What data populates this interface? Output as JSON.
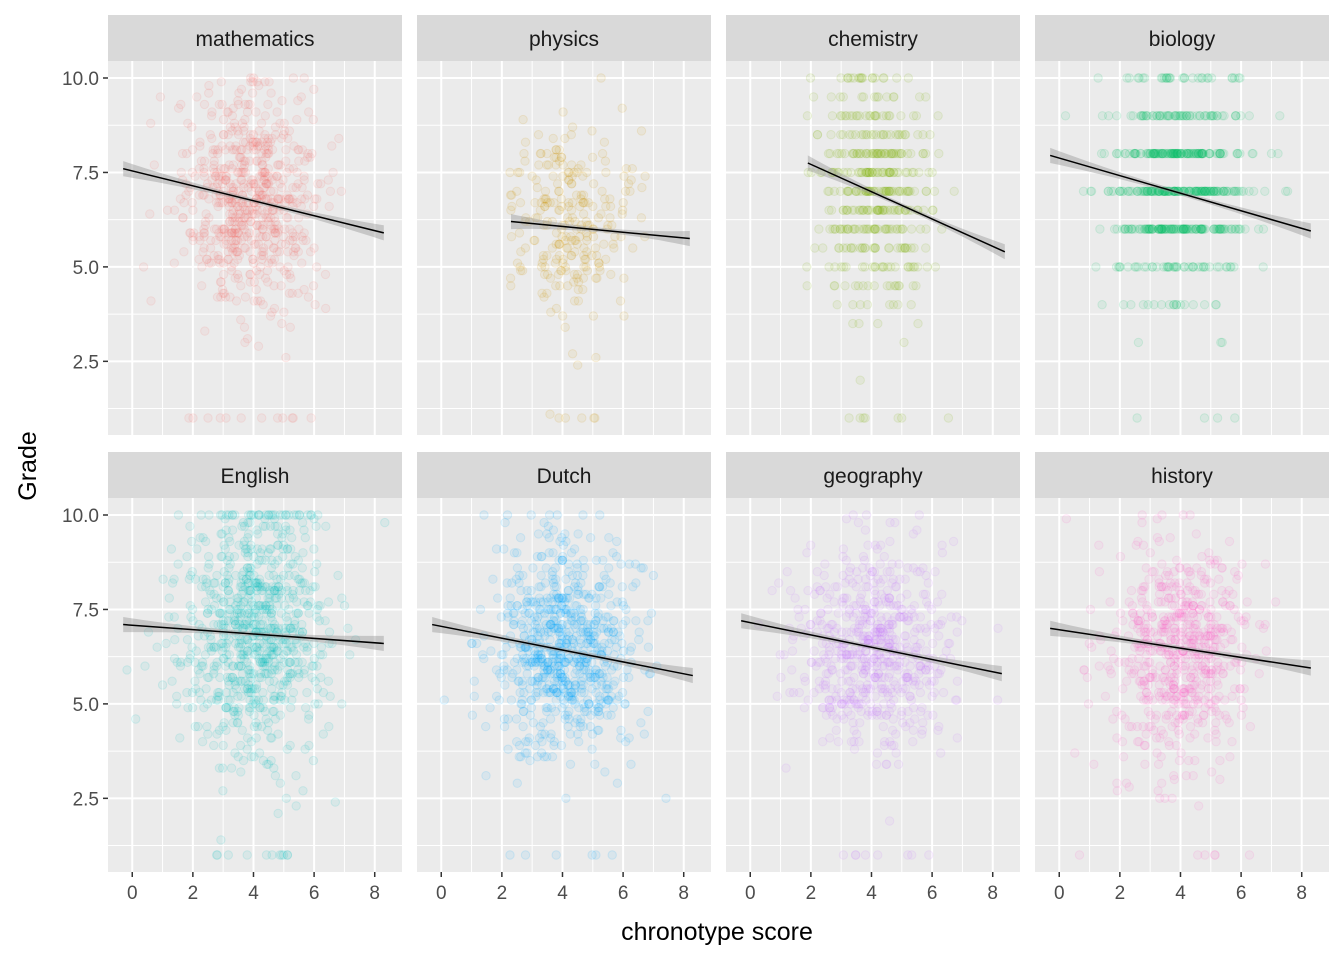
{
  "chart_data": {
    "type": "scatter",
    "layout": "facet_wrap",
    "xlabel": "chronotype score",
    "ylabel": "Grade",
    "xlim": [
      -0.8,
      8.9
    ],
    "ylim": [
      0.55,
      10.45
    ],
    "xticks": [
      0,
      2,
      4,
      6,
      8
    ],
    "xtick_labels": [
      "0",
      "2",
      "4",
      "6",
      "8"
    ],
    "yticks": [
      2.5,
      5.0,
      7.5,
      10.0
    ],
    "ytick_labels": [
      "2.5",
      "5.0",
      "7.5",
      "10.0"
    ],
    "point_alpha": 0.08,
    "trend_line_color": "#000000",
    "ribbon_color": "#999999",
    "panel_background": "#ebebeb",
    "strip_background": "#d9d9d9",
    "grid_color": "#ffffff",
    "panels": [
      {
        "name": "mathematics",
        "color": "#F8766D",
        "cx": 4.0,
        "sx": 1.15,
        "xmin": -0.4,
        "xmax": 8.3,
        "cy": 6.8,
        "sy": 1.5,
        "ystep": 0.1,
        "n": 650,
        "fit": {
          "x": [
            -0.3,
            8.3
          ],
          "y": [
            7.6,
            5.9
          ]
        }
      },
      {
        "name": "physics",
        "color": "#CD9600",
        "cx": 4.3,
        "sx": 1.0,
        "xmin": 2.3,
        "xmax": 8.1,
        "cy": 6.2,
        "sy": 1.3,
        "ystep": 0.1,
        "n": 260,
        "fit": {
          "x": [
            2.3,
            8.2
          ],
          "y": [
            6.2,
            5.75
          ]
        }
      },
      {
        "name": "chemistry",
        "color": "#7CAE00",
        "cx": 4.1,
        "sx": 1.0,
        "xmin": 1.9,
        "xmax": 8.4,
        "cy": 7.0,
        "sy": 1.6,
        "ystep": 0.5,
        "n": 420,
        "fit": {
          "x": [
            1.9,
            8.4
          ],
          "y": [
            7.75,
            5.4
          ]
        }
      },
      {
        "name": "biology",
        "color": "#00BE67",
        "cx": 4.0,
        "sx": 1.2,
        "xmin": -0.3,
        "xmax": 8.3,
        "cy": 7.1,
        "sy": 1.5,
        "ystep": 1.0,
        "n": 560,
        "fit": {
          "x": [
            -0.3,
            8.3
          ],
          "y": [
            7.95,
            5.95
          ]
        }
      },
      {
        "name": "English",
        "color": "#00BFC4",
        "cx": 4.0,
        "sx": 1.2,
        "xmin": -0.3,
        "xmax": 8.3,
        "cy": 7.0,
        "sy": 1.7,
        "ystep": 0.1,
        "n": 820,
        "fit": {
          "x": [
            -0.3,
            8.3
          ],
          "y": [
            7.1,
            6.6
          ]
        }
      },
      {
        "name": "Dutch",
        "color": "#00A9FF",
        "cx": 4.0,
        "sx": 1.2,
        "xmin": -0.3,
        "xmax": 8.3,
        "cy": 6.5,
        "sy": 1.4,
        "ystep": 0.1,
        "n": 760,
        "fit": {
          "x": [
            -0.3,
            8.3
          ],
          "y": [
            7.1,
            5.75
          ]
        }
      },
      {
        "name": "geography",
        "color": "#C77CFF",
        "cx": 4.0,
        "sx": 1.2,
        "xmin": -0.3,
        "xmax": 8.3,
        "cy": 6.5,
        "sy": 1.3,
        "ystep": 0.1,
        "n": 620,
        "fit": {
          "x": [
            -0.3,
            8.3
          ],
          "y": [
            7.2,
            5.8
          ]
        }
      },
      {
        "name": "history",
        "color": "#FF61CC",
        "cx": 4.0,
        "sx": 1.2,
        "xmin": -0.3,
        "xmax": 8.3,
        "cy": 6.4,
        "sy": 1.4,
        "ystep": 0.1,
        "n": 640,
        "fit": {
          "x": [
            -0.3,
            8.3
          ],
          "y": [
            7.0,
            5.95
          ]
        }
      }
    ]
  }
}
